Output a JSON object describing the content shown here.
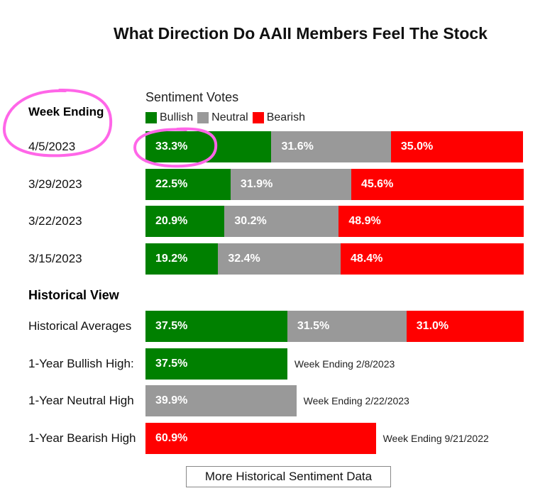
{
  "title": "What Direction Do AAII Members Feel The Stock",
  "week_header": "Week Ending",
  "sentiment_title": "Sentiment Votes",
  "historical_header": "Historical View",
  "more_button_label": "More Historical Sentiment Data",
  "colors": {
    "bullish": "#008000",
    "neutral": "#999999",
    "bearish": "#ff0000",
    "annotation": "#ff66e8"
  },
  "chart_data": {
    "type": "bar",
    "orientation": "horizontal",
    "stacked": true,
    "legend": [
      "Bullish",
      "Neutral",
      "Bearish"
    ],
    "legend_position": "top",
    "weekly": [
      {
        "label": "4/5/2023",
        "bullish": 33.3,
        "neutral": 31.6,
        "bearish": 35.0,
        "bullish_text": "33.3%",
        "neutral_text": "31.6%",
        "bearish_text": "35.0%"
      },
      {
        "label": "3/29/2023",
        "bullish": 22.5,
        "neutral": 31.9,
        "bearish": 45.6,
        "bullish_text": "22.5%",
        "neutral_text": "31.9%",
        "bearish_text": "45.6%"
      },
      {
        "label": "3/22/2023",
        "bullish": 20.9,
        "neutral": 30.2,
        "bearish": 48.9,
        "bullish_text": "20.9%",
        "neutral_text": "30.2%",
        "bearish_text": "48.9%"
      },
      {
        "label": "3/15/2023",
        "bullish": 19.2,
        "neutral": 32.4,
        "bearish": 48.4,
        "bullish_text": "19.2%",
        "neutral_text": "32.4%",
        "bearish_text": "48.4%"
      }
    ],
    "historical_averages": {
      "label": "Historical Averages",
      "bullish": 37.5,
      "neutral": 31.5,
      "bearish": 31.0,
      "bullish_text": "37.5%",
      "neutral_text": "31.5%",
      "bearish_text": "31.0%"
    },
    "highs": [
      {
        "label": "1-Year Bullish High:",
        "kind": "bullish",
        "value": 37.5,
        "value_text": "37.5%",
        "note": "Week Ending 2/8/2023"
      },
      {
        "label": "1-Year Neutral High",
        "kind": "neutral",
        "value": 39.9,
        "value_text": "39.9%",
        "note": "Week Ending 2/22/2023"
      },
      {
        "label": "1-Year Bearish High",
        "kind": "bearish",
        "value": 60.9,
        "value_text": "60.9%",
        "note": "Week Ending 9/21/2022"
      }
    ]
  }
}
